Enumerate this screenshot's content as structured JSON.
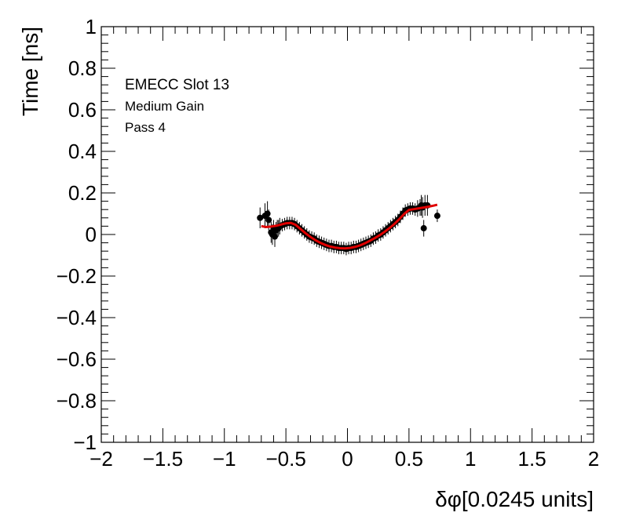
{
  "chart_data": {
    "type": "scatter",
    "xlabel": "δφ[0.0245 units]",
    "ylabel": "Time [ns]",
    "xlim": [
      -2,
      2
    ],
    "ylim": [
      -1,
      1
    ],
    "x_ticks": [
      -2,
      -1.5,
      -1,
      -0.5,
      0,
      0.5,
      1,
      1.5,
      2
    ],
    "x_tick_labels": [
      "−2",
      "−1.5",
      "−1",
      "−0.5",
      "0",
      "0.5",
      "1",
      "1.5",
      "2"
    ],
    "y_ticks": [
      -1,
      -0.8,
      -0.6,
      -0.4,
      -0.2,
      0,
      0.2,
      0.4,
      0.6,
      0.8,
      1
    ],
    "y_tick_labels": [
      "−1",
      "−0.8",
      "−0.6",
      "−0.4",
      "−0.2",
      "0",
      "0.2",
      "0.4",
      "0.6",
      "0.8",
      "1"
    ],
    "grid": false,
    "annotations": [
      "EMECC Slot 13",
      "Medium Gain",
      "Pass 4"
    ],
    "points_color": "#000000",
    "fit_color": "#e00000",
    "points": [
      [
        -0.71,
        0.08,
        0.05
      ],
      [
        -0.67,
        0.09,
        0.06
      ],
      [
        -0.65,
        0.1,
        0.06
      ],
      [
        -0.64,
        0.07,
        0.05
      ],
      [
        -0.62,
        0.01,
        0.05
      ],
      [
        -0.61,
        0.0,
        0.05
      ],
      [
        -0.6,
        0.03,
        0.04
      ],
      [
        -0.59,
        -0.01,
        0.05
      ],
      [
        -0.58,
        0.02,
        0.04
      ],
      [
        -0.57,
        0.03,
        0.04
      ],
      [
        -0.56,
        0.03,
        0.04
      ],
      [
        -0.55,
        0.04,
        0.04
      ],
      [
        -0.53,
        0.045,
        0.03
      ],
      [
        -0.51,
        0.05,
        0.03
      ],
      [
        -0.49,
        0.055,
        0.03
      ],
      [
        -0.47,
        0.055,
        0.03
      ],
      [
        -0.45,
        0.055,
        0.03
      ],
      [
        -0.43,
        0.05,
        0.03
      ],
      [
        -0.41,
        0.04,
        0.03
      ],
      [
        -0.39,
        0.03,
        0.03
      ],
      [
        -0.37,
        0.02,
        0.03
      ],
      [
        -0.35,
        0.01,
        0.03
      ],
      [
        -0.33,
        0.0,
        0.03
      ],
      [
        -0.31,
        -0.01,
        0.03
      ],
      [
        -0.29,
        -0.015,
        0.03
      ],
      [
        -0.27,
        -0.02,
        0.03
      ],
      [
        -0.25,
        -0.03,
        0.03
      ],
      [
        -0.23,
        -0.035,
        0.03
      ],
      [
        -0.21,
        -0.04,
        0.03
      ],
      [
        -0.19,
        -0.045,
        0.03
      ],
      [
        -0.17,
        -0.05,
        0.03
      ],
      [
        -0.15,
        -0.055,
        0.03
      ],
      [
        -0.13,
        -0.055,
        0.03
      ],
      [
        -0.11,
        -0.06,
        0.03
      ],
      [
        -0.09,
        -0.06,
        0.03
      ],
      [
        -0.07,
        -0.065,
        0.03
      ],
      [
        -0.05,
        -0.065,
        0.03
      ],
      [
        -0.03,
        -0.065,
        0.03
      ],
      [
        -0.01,
        -0.07,
        0.03
      ],
      [
        0.01,
        -0.065,
        0.03
      ],
      [
        0.03,
        -0.065,
        0.03
      ],
      [
        0.05,
        -0.06,
        0.03
      ],
      [
        0.07,
        -0.06,
        0.03
      ],
      [
        0.09,
        -0.055,
        0.03
      ],
      [
        0.11,
        -0.05,
        0.03
      ],
      [
        0.13,
        -0.045,
        0.03
      ],
      [
        0.15,
        -0.04,
        0.03
      ],
      [
        0.17,
        -0.035,
        0.03
      ],
      [
        0.19,
        -0.03,
        0.03
      ],
      [
        0.21,
        -0.02,
        0.03
      ],
      [
        0.23,
        -0.015,
        0.03
      ],
      [
        0.25,
        -0.005,
        0.03
      ],
      [
        0.27,
        0.0,
        0.03
      ],
      [
        0.29,
        0.01,
        0.03
      ],
      [
        0.31,
        0.02,
        0.03
      ],
      [
        0.33,
        0.03,
        0.03
      ],
      [
        0.35,
        0.04,
        0.03
      ],
      [
        0.37,
        0.05,
        0.03
      ],
      [
        0.39,
        0.06,
        0.03
      ],
      [
        0.41,
        0.07,
        0.03
      ],
      [
        0.43,
        0.085,
        0.03
      ],
      [
        0.45,
        0.1,
        0.03
      ],
      [
        0.47,
        0.115,
        0.03
      ],
      [
        0.49,
        0.12,
        0.03
      ],
      [
        0.51,
        0.125,
        0.03
      ],
      [
        0.53,
        0.125,
        0.03
      ],
      [
        0.55,
        0.12,
        0.03
      ],
      [
        0.57,
        0.125,
        0.04
      ],
      [
        0.59,
        0.13,
        0.04
      ],
      [
        0.6,
        0.14,
        0.05
      ],
      [
        0.61,
        0.13,
        0.05
      ],
      [
        0.62,
        0.03,
        0.04
      ],
      [
        0.63,
        0.14,
        0.05
      ],
      [
        0.65,
        0.14,
        0.05
      ],
      [
        0.73,
        0.09,
        0.03
      ]
    ],
    "fit_curve": [
      [
        -0.7,
        0.04
      ],
      [
        -0.66,
        0.036
      ],
      [
        -0.62,
        0.038
      ],
      [
        -0.58,
        0.042
      ],
      [
        -0.54,
        0.048
      ],
      [
        -0.5,
        0.054
      ],
      [
        -0.46,
        0.056
      ],
      [
        -0.42,
        0.046
      ],
      [
        -0.38,
        0.026
      ],
      [
        -0.34,
        0.006
      ],
      [
        -0.3,
        -0.012
      ],
      [
        -0.26,
        -0.027
      ],
      [
        -0.22,
        -0.04
      ],
      [
        -0.18,
        -0.05
      ],
      [
        -0.14,
        -0.058
      ],
      [
        -0.1,
        -0.063
      ],
      [
        -0.06,
        -0.066
      ],
      [
        -0.02,
        -0.067
      ],
      [
        0.02,
        -0.065
      ],
      [
        0.06,
        -0.06
      ],
      [
        0.1,
        -0.053
      ],
      [
        0.14,
        -0.043
      ],
      [
        0.18,
        -0.031
      ],
      [
        0.22,
        -0.018
      ],
      [
        0.26,
        -0.004
      ],
      [
        0.3,
        0.012
      ],
      [
        0.34,
        0.03
      ],
      [
        0.38,
        0.05
      ],
      [
        0.42,
        0.073
      ],
      [
        0.46,
        0.098
      ],
      [
        0.5,
        0.118
      ],
      [
        0.54,
        0.122
      ],
      [
        0.58,
        0.126
      ],
      [
        0.62,
        0.13
      ],
      [
        0.66,
        0.134
      ],
      [
        0.7,
        0.139
      ],
      [
        0.73,
        0.143
      ]
    ]
  }
}
